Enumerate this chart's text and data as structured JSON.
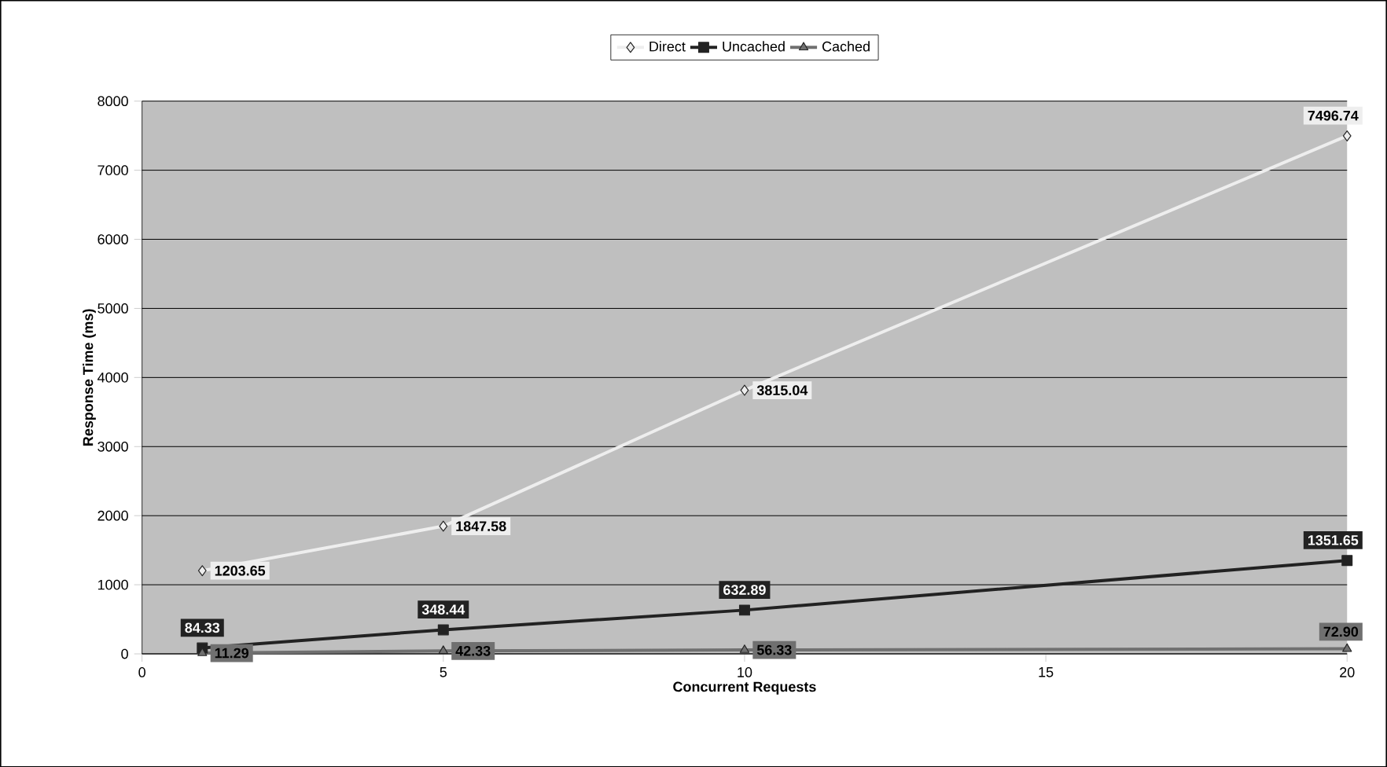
{
  "chart_data": {
    "type": "line",
    "xlabel": "Concurrent Requests",
    "ylabel": "Response Time (ms)",
    "x": [
      1,
      5,
      10,
      20
    ],
    "series": [
      {
        "name": "Direct",
        "color": "#eeeeee",
        "marker": "diamond",
        "values": [
          1203.65,
          1847.58,
          3815.04,
          7496.74
        ],
        "value_labels": [
          "1203.65",
          "1847.58",
          "3815.04",
          "7496.74"
        ]
      },
      {
        "name": "Uncached",
        "color": "#222222",
        "marker": "square",
        "values": [
          84.33,
          348.44,
          632.89,
          1351.65
        ],
        "value_labels": [
          "84.33",
          "348.44",
          "632.89",
          "1351.65"
        ]
      },
      {
        "name": "Cached",
        "color": "#707070",
        "marker": "triangle",
        "values": [
          11.29,
          42.33,
          56.33,
          72.9
        ],
        "value_labels": [
          "11.29",
          "42.33",
          "56.33",
          "72.90"
        ]
      }
    ],
    "xlim": [
      0,
      20
    ],
    "xticks": [
      0,
      5,
      10,
      15,
      20
    ],
    "ylim": [
      0,
      8000
    ],
    "yticks": [
      0,
      1000,
      2000,
      3000,
      4000,
      5000,
      6000,
      7000,
      8000
    ],
    "grid": "y",
    "legend": "top",
    "line_style": "solid"
  }
}
